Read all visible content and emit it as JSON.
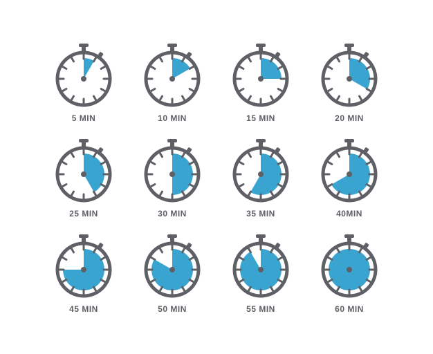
{
  "infographic": {
    "type": "infographic",
    "grid": {
      "rows": 3,
      "cols": 4
    },
    "background_color": "#ffffff",
    "style": {
      "case_stroke": "#5e6066",
      "case_fill": "#ffffff",
      "case_stroke_width": 5,
      "tick_color": "#5e6066",
      "tick_width": 3,
      "fill_color": "#3aa4d1",
      "center_dot_color": "#5e6066",
      "label_color": "#5e6066",
      "label_fontsize": 12,
      "label_weight": 700,
      "dial_radius": 38,
      "svg_size": 100
    },
    "items": [
      {
        "minutes": 5,
        "label": "5 MIN"
      },
      {
        "minutes": 10,
        "label": "10 MIN"
      },
      {
        "minutes": 15,
        "label": "15 MIN"
      },
      {
        "minutes": 20,
        "label": "20 MIN"
      },
      {
        "minutes": 25,
        "label": "25 MIN"
      },
      {
        "minutes": 30,
        "label": "30 MIN"
      },
      {
        "minutes": 35,
        "label": "35 MIN"
      },
      {
        "minutes": 40,
        "label": "40MIN"
      },
      {
        "minutes": 45,
        "label": "45 MIN"
      },
      {
        "minutes": 50,
        "label": "50 MIN"
      },
      {
        "minutes": 55,
        "label": "55 MIN"
      },
      {
        "minutes": 60,
        "label": "60 MIN"
      }
    ]
  }
}
